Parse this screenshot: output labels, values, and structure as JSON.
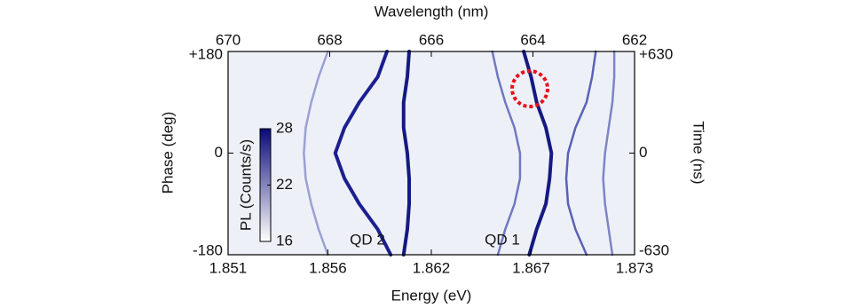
{
  "chart_data": {
    "type": "line",
    "xlabel": "Energy (eV)",
    "x2label": "Wavelength (nm)",
    "ylabel": "Phase (deg)",
    "y2label": "Time (ns)",
    "xlim": [
      1.851,
      1.873
    ],
    "xticks": [
      1.851,
      {
        "value": 1.8564,
        "label": "1.856"
      },
      1.862,
      {
        "value": 1.8674,
        "label": "1.867"
      },
      1.873
    ],
    "x2lim": [
      670,
      662
    ],
    "x2ticks": [
      670,
      668,
      666,
      664,
      662
    ],
    "ylim": [
      -180,
      180
    ],
    "yticks": [
      -180,
      0,
      {
        "value": 180,
        "label": "+180"
      }
    ],
    "y2lim": [
      -630,
      630
    ],
    "y2ticks": [
      -630,
      0,
      {
        "value": 630,
        "label": "+630"
      }
    ],
    "y": [
      -180,
      -135,
      -90,
      -45,
      0,
      45,
      90,
      135,
      180
    ],
    "series": [
      {
        "color": "#1c1f8f",
        "x": [
          1.8598,
          1.8591,
          1.8581,
          1.8573,
          1.8568,
          1.8573,
          1.8581,
          1.8591,
          1.8596
        ]
      },
      {
        "color": "#141a80",
        "x": [
          1.8605,
          1.8607,
          1.8608,
          1.8608,
          1.8607,
          1.8605,
          1.8605,
          1.8607,
          1.8608
        ]
      },
      {
        "color": "#141a80",
        "x": [
          1.8673,
          1.8677,
          1.8682,
          1.8684,
          1.8685,
          1.8682,
          1.8677,
          1.8674,
          1.867
        ]
      },
      {
        "color": "#5a62b4",
        "x": [
          1.8704,
          1.8698,
          1.8694,
          1.8693,
          1.8694,
          1.8698,
          1.8704,
          1.8707,
          1.8709
        ]
      },
      {
        "color": "#7d84c6",
        "x": [
          1.8718,
          1.8716,
          1.8714,
          1.8713,
          1.8714,
          1.8716,
          1.8718,
          1.8719,
          1.8719
        ]
      },
      {
        "color": "#9aa0d4",
        "x": [
          1.8564,
          1.8559,
          1.8555,
          1.8552,
          1.8551,
          1.8552,
          1.8555,
          1.8559,
          1.8564
        ]
      },
      {
        "color": "#7078c0",
        "x": [
          1.8656,
          1.866,
          1.8665,
          1.8668,
          1.8668,
          1.8665,
          1.866,
          1.8656,
          1.8653
        ]
      }
    ],
    "colorbar": {
      "label": "PL (Counts/s)",
      "lim": [
        16,
        28
      ],
      "ticks": [
        16,
        22,
        28
      ],
      "colors": [
        "#ffffff",
        "#0a0a78"
      ]
    },
    "annotations": [
      "QD 2",
      "QD 1"
    ]
  }
}
